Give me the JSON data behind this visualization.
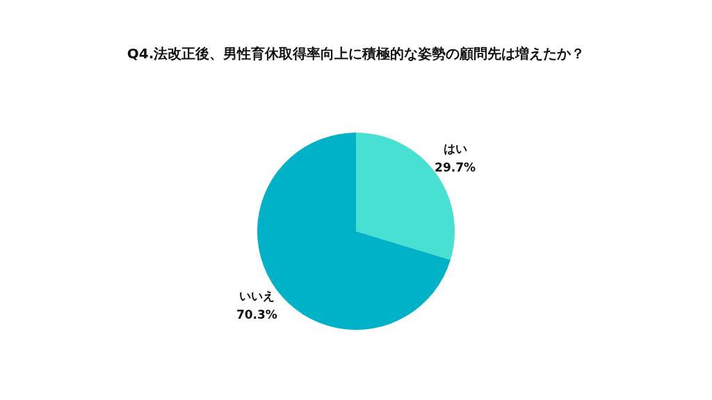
{
  "chart_data": {
    "type": "pie",
    "title": "Q4.法改正後、男性育休取得率向上に積極的な姿勢の顧問先は増えたか？",
    "categories": [
      "はい",
      "いいえ"
    ],
    "values": [
      29.7,
      70.3
    ],
    "colors": [
      "#48e0d2",
      "#00b2c8"
    ],
    "value_labels": [
      "29.7%",
      "70.3%"
    ]
  }
}
